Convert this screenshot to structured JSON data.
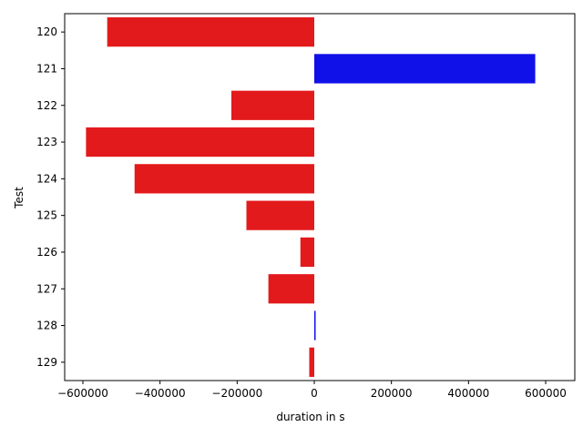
{
  "chart_data": {
    "type": "bar",
    "orientation": "horizontal",
    "title": "",
    "xlabel": "duration in s",
    "ylabel": "Test",
    "xlim": [
      -600000,
      600000
    ],
    "xticks": [
      -600000,
      -400000,
      -200000,
      0,
      200000,
      400000,
      600000
    ],
    "xtick_labels": [
      "−600000",
      "−400000",
      "−200000",
      "0",
      "200000",
      "400000",
      "600000"
    ],
    "grid": false,
    "legend": "none",
    "categories": [
      "120",
      "121",
      "122",
      "123",
      "124",
      "125",
      "126",
      "127",
      "128",
      "129"
    ],
    "values": [
      -537000,
      573000,
      -215000,
      -592000,
      -466000,
      -176000,
      -36000,
      -119000,
      3000,
      -13000
    ],
    "bar_colors": [
      "#e31a1c",
      "#1010e8",
      "#e31a1c",
      "#e31a1c",
      "#e31a1c",
      "#e31a1c",
      "#e31a1c",
      "#e31a1c",
      "#1010e8",
      "#e31a1c"
    ],
    "colors": {
      "negative": "#e31a1c",
      "positive": "#1010e8"
    }
  }
}
